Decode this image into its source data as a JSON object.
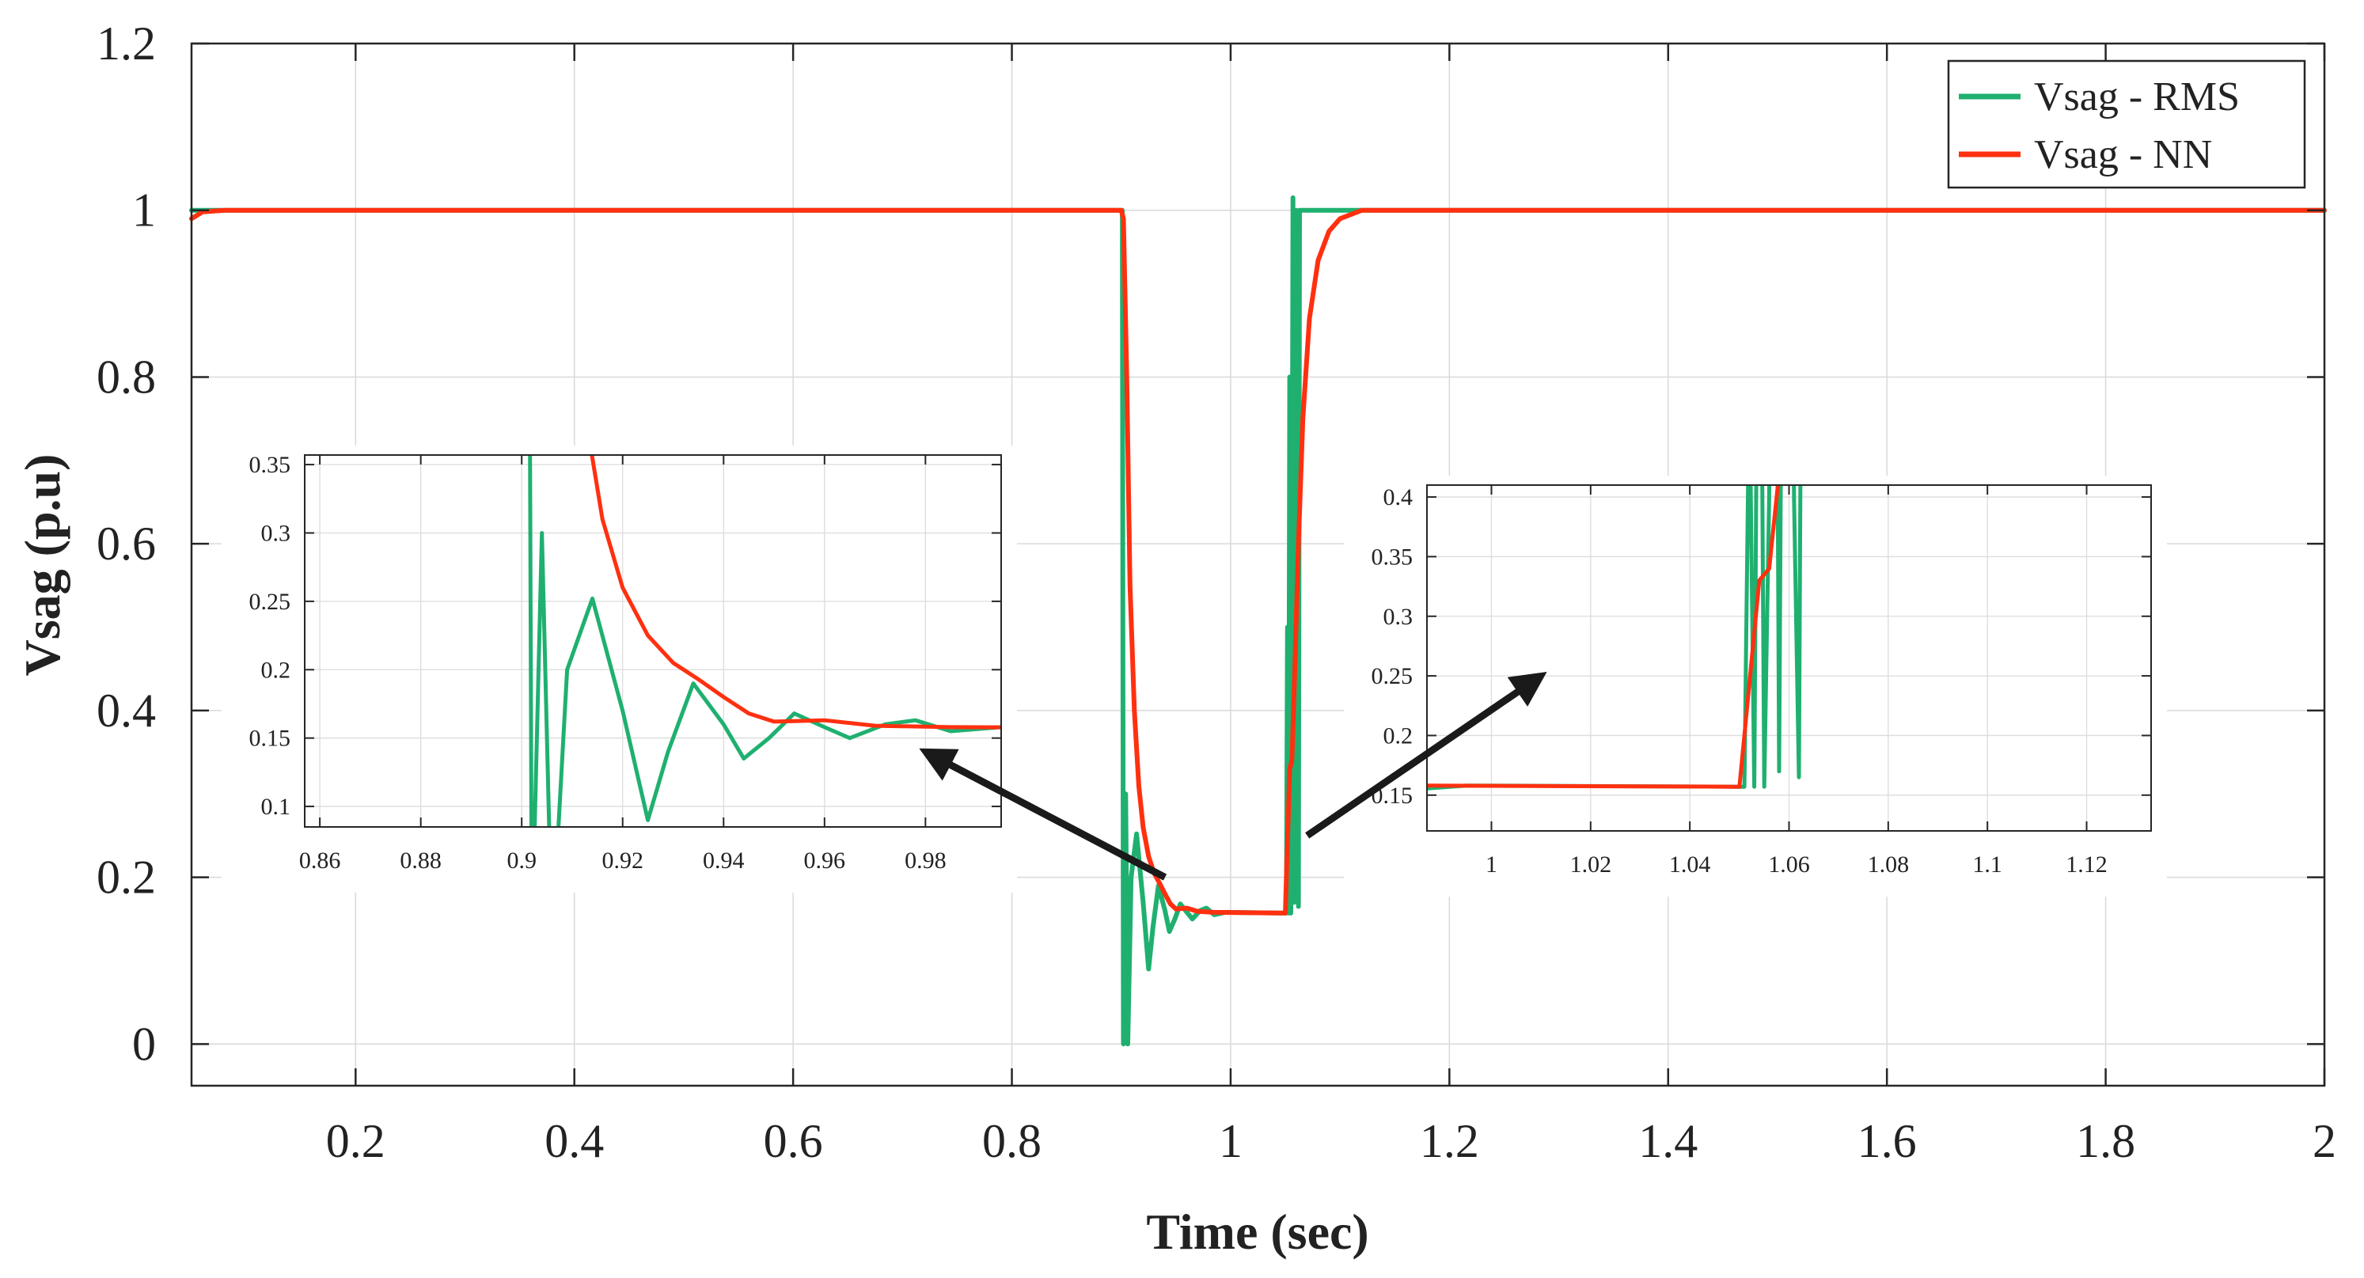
{
  "chart_data": {
    "type": "line",
    "xlabel": "Time (sec)",
    "ylabel": "Vsag (p.u)",
    "xlim": [
      0.05,
      2.0
    ],
    "ylim": [
      -0.05,
      1.2
    ],
    "x_ticks": [
      0.2,
      0.4,
      0.6,
      0.8,
      1.0,
      1.2,
      1.4,
      1.6,
      1.8,
      2.0
    ],
    "x_tick_labels": [
      "0.2",
      "0.4",
      "0.6",
      "0.8",
      "1",
      "1.2",
      "1.4",
      "1.6",
      "1.8",
      "2"
    ],
    "y_ticks": [
      0,
      0.2,
      0.4,
      0.6,
      0.8,
      1.0,
      1.2
    ],
    "y_tick_labels": [
      "0",
      "0.2",
      "0.4",
      "0.6",
      "0.8",
      "1",
      "1.2"
    ],
    "grid": true,
    "legend_position": "top-right",
    "colors": {
      "rms": "#1fb070",
      "nn": "#ff3010"
    },
    "series": [
      {
        "name": "Vsag - RMS",
        "color": "#1fb070",
        "points": [
          [
            0.05,
            1.0
          ],
          [
            0.9,
            1.0
          ],
          [
            0.901,
            1.0
          ],
          [
            0.902,
            0.0
          ],
          [
            0.904,
            0.3
          ],
          [
            0.906,
            0.0
          ],
          [
            0.909,
            0.2
          ],
          [
            0.914,
            0.252
          ],
          [
            0.92,
            0.17
          ],
          [
            0.925,
            0.09
          ],
          [
            0.929,
            0.14
          ],
          [
            0.934,
            0.19
          ],
          [
            0.94,
            0.16
          ],
          [
            0.944,
            0.135
          ],
          [
            0.949,
            0.15
          ],
          [
            0.954,
            0.168
          ],
          [
            0.96,
            0.158
          ],
          [
            0.965,
            0.15
          ],
          [
            0.972,
            0.16
          ],
          [
            0.978,
            0.163
          ],
          [
            0.985,
            0.155
          ],
          [
            0.995,
            0.158
          ],
          [
            1.05,
            0.157
          ],
          [
            1.051,
            0.157
          ],
          [
            1.052,
            0.5
          ],
          [
            1.053,
            0.157
          ],
          [
            1.054,
            0.8
          ],
          [
            1.055,
            0.157
          ],
          [
            1.056,
            0.4
          ],
          [
            1.057,
            1.015
          ],
          [
            1.058,
            0.17
          ],
          [
            1.059,
            0.9
          ],
          [
            1.06,
            1.0
          ],
          [
            1.061,
            0.4
          ],
          [
            1.062,
            0.165
          ],
          [
            1.063,
            1.0
          ],
          [
            1.1,
            1.0
          ],
          [
            2.0,
            1.0
          ]
        ]
      },
      {
        "name": "Vsag - NN",
        "color": "#ff3010",
        "points": [
          [
            0.05,
            0.99
          ],
          [
            0.06,
            0.998
          ],
          [
            0.08,
            1.0
          ],
          [
            0.9,
            1.0
          ],
          [
            0.902,
            0.99
          ],
          [
            0.905,
            0.8
          ],
          [
            0.908,
            0.55
          ],
          [
            0.912,
            0.4
          ],
          [
            0.916,
            0.31
          ],
          [
            0.92,
            0.26
          ],
          [
            0.925,
            0.225
          ],
          [
            0.93,
            0.205
          ],
          [
            0.935,
            0.193
          ],
          [
            0.94,
            0.18
          ],
          [
            0.945,
            0.168
          ],
          [
            0.95,
            0.162
          ],
          [
            0.96,
            0.163
          ],
          [
            0.97,
            0.159
          ],
          [
            0.985,
            0.158
          ],
          [
            1.05,
            0.157
          ],
          [
            1.051,
            0.2
          ],
          [
            1.054,
            0.33
          ],
          [
            1.056,
            0.34
          ],
          [
            1.058,
            0.42
          ],
          [
            1.062,
            0.6
          ],
          [
            1.066,
            0.75
          ],
          [
            1.072,
            0.87
          ],
          [
            1.08,
            0.94
          ],
          [
            1.09,
            0.975
          ],
          [
            1.1,
            0.99
          ],
          [
            1.12,
            1.0
          ],
          [
            2.0,
            1.0
          ]
        ]
      }
    ],
    "insets": [
      {
        "name": "zoom-sag-start",
        "xlim": [
          0.857,
          0.995
        ],
        "ylim": [
          0.085,
          0.357
        ],
        "x_ticks": [
          0.86,
          0.88,
          0.9,
          0.92,
          0.94,
          0.96,
          0.98
        ],
        "x_tick_labels": [
          "0.86",
          "0.88",
          "0.9",
          "0.92",
          "0.94",
          "0.96",
          "0.98"
        ],
        "y_ticks": [
          0.1,
          0.15,
          0.2,
          0.25,
          0.3,
          0.35
        ],
        "y_tick_labels": [
          "0.1",
          "0.15",
          "0.2",
          "0.25",
          "0.3",
          "0.35"
        ],
        "arrow_from": [
          0.94,
          0.2
        ],
        "arrow_to": [
          0.98,
          0.14
        ]
      },
      {
        "name": "zoom-sag-end",
        "xlim": [
          0.987,
          1.133
        ],
        "ylim": [
          0.12,
          0.41
        ],
        "x_ticks": [
          1.0,
          1.02,
          1.04,
          1.06,
          1.08,
          1.1,
          1.12
        ],
        "x_tick_labels": [
          "1",
          "1.02",
          "1.04",
          "1.06",
          "1.08",
          "1.1",
          "1.12"
        ],
        "y_ticks": [
          0.15,
          0.2,
          0.25,
          0.3,
          0.35,
          0.4
        ],
        "y_tick_labels": [
          "0.15",
          "0.2",
          "0.25",
          "0.3",
          "0.35",
          "0.4"
        ],
        "arrow_from": [
          1.07,
          0.25
        ],
        "arrow_to": [
          1.01,
          0.25
        ]
      }
    ]
  }
}
